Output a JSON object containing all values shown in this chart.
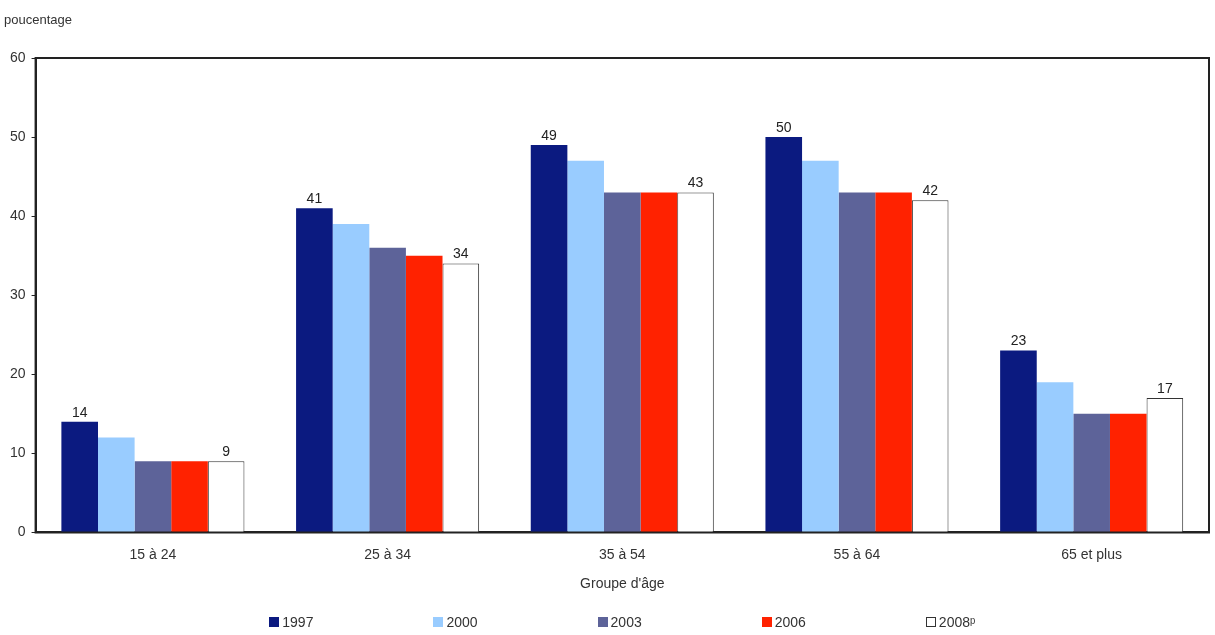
{
  "chart_data": {
    "type": "bar",
    "ylabel": "poucentage",
    "xlabel": "Groupe d'âge",
    "categories": [
      "15 à 24",
      "25 à 34",
      "35 à 54",
      "55 à 64",
      "65 et plus"
    ],
    "series": [
      {
        "name": "1997",
        "color": "#0b1a80",
        "values": [
          14,
          41,
          49,
          50,
          23
        ],
        "value_labels": [
          "14",
          "41",
          "49",
          "50",
          "23"
        ]
      },
      {
        "name": "2000",
        "color": "#99ccff",
        "values": [
          12,
          39,
          47,
          47,
          19
        ]
      },
      {
        "name": "2003",
        "color": "#5d6399",
        "values": [
          9,
          36,
          43,
          43,
          15
        ]
      },
      {
        "name": "2006",
        "color": "#ff2200",
        "values": [
          9,
          35,
          43,
          43,
          15
        ]
      },
      {
        "name": "2008ᵖ",
        "color": "#ffffff",
        "values": [
          9,
          34,
          43,
          42,
          17
        ],
        "value_labels": [
          "9",
          "34",
          "43",
          "42",
          "17"
        ]
      }
    ],
    "ylim": [
      0,
      60
    ],
    "yticks": [
      0,
      10,
      20,
      30,
      40,
      50,
      60
    ],
    "legend": "bottom"
  }
}
